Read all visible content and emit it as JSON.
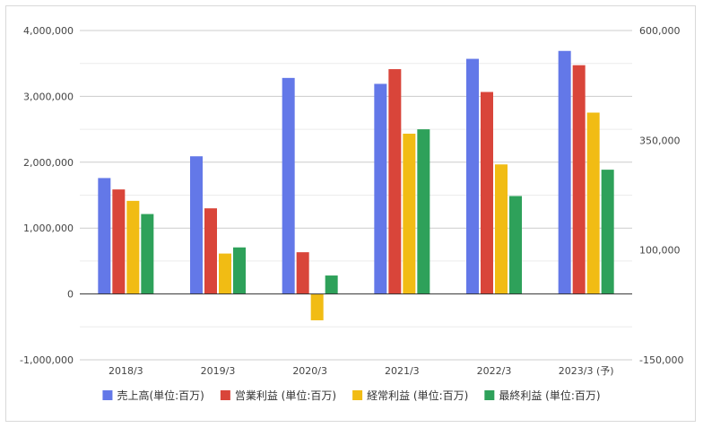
{
  "chart_data": {
    "type": "bar",
    "title": "",
    "categories": [
      "2018/3",
      "2019/3",
      "2020/3",
      "2021/3",
      "2022/3",
      "2023/3 (予)"
    ],
    "series": [
      {
        "name": "売上高(単位:百万)",
        "color": "#6378e8",
        "axis": "left",
        "values": [
          1760000,
          2090000,
          3280000,
          3190000,
          3570000,
          3690000
        ]
      },
      {
        "name": "営業利益 (単位:百万)",
        "color": "#d9453a",
        "axis": "right",
        "values": [
          238000,
          195000,
          95000,
          512000,
          460000,
          521000
        ]
      },
      {
        "name": "経常利益 (単位:百万)",
        "color": "#f1bc14",
        "axis": "right",
        "values": [
          212000,
          92000,
          -60000,
          365000,
          295000,
          413000
        ]
      },
      {
        "name": "最終利益 (単位:百万)",
        "color": "#2ea15a",
        "axis": "right",
        "values": [
          182000,
          106000,
          42000,
          375000,
          223000,
          283000
        ]
      }
    ],
    "y_left": {
      "min": -1000000,
      "max": 4000000,
      "ticks": [
        -1000000,
        0,
        1000000,
        2000000,
        3000000,
        4000000
      ],
      "tick_labels": [
        "-1,000,000",
        "0",
        "1,000,000",
        "2,000,000",
        "3,000,000",
        "4,000,000"
      ]
    },
    "y_right": {
      "min": -150000,
      "max": 600000,
      "ticks": [
        -150000,
        100000,
        350000,
        600000
      ],
      "tick_labels": [
        "-150,000",
        "100,000",
        "350,000",
        "600,000"
      ]
    },
    "grid": true,
    "minor_gridlines": true,
    "legend_position": "bottom"
  }
}
